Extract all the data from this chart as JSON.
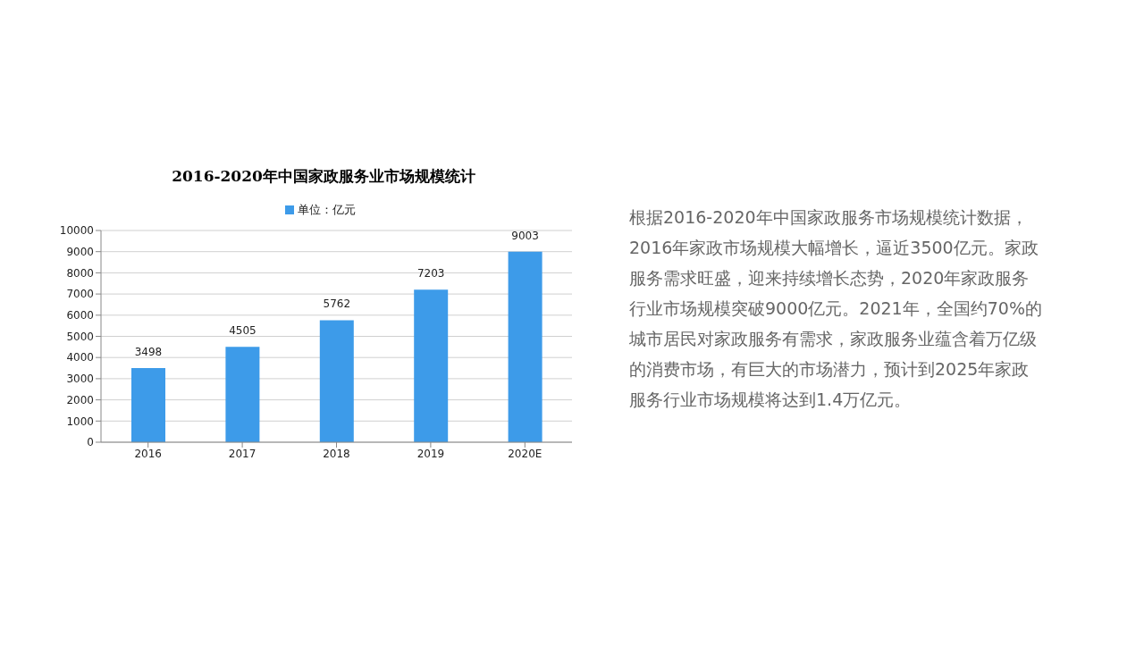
{
  "chart_data": {
    "type": "bar",
    "title": "2016-2020年中国家政服务业市场规模统计",
    "categories": [
      "2016",
      "2017",
      "2018",
      "2019",
      "2020E"
    ],
    "series": [
      {
        "name": "单位：亿元",
        "color": "#3d9be9",
        "values": [
          3498,
          4505,
          5762,
          7203,
          9003
        ]
      }
    ],
    "ylim": [
      0,
      10000
    ],
    "yticks": [
      0,
      1000,
      2000,
      3000,
      4000,
      5000,
      6000,
      7000,
      8000,
      9000,
      10000
    ],
    "grid": "y",
    "legend": "top",
    "data_labels": true,
    "annotations": [
      "根据2016-2020年中国家政服务市场规模统计数据，2016年家政市场规模大幅增长，逼近3500亿元。家政服务需求旺盛，迎来持续增长态势，2020年家政服务行业市场规模突破9000亿元。2021年，全国约70%的城市居民对家政服务有需求，家政服务业蕴含着万亿级的消费市场，有巨大的市场潜力，预计到2025年家政服务行业市场规模将达到1.4万亿元。"
    ]
  }
}
